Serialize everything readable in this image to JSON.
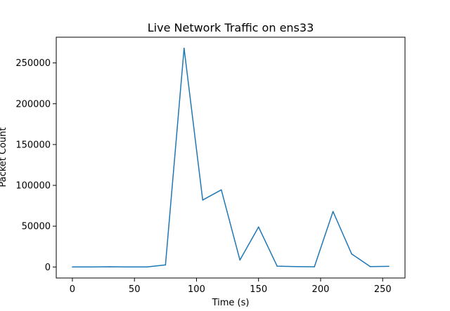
{
  "chart_data": {
    "type": "line",
    "title": "Live Network Traffic on ens33",
    "xlabel": "Time (s)",
    "ylabel": "Packet Count",
    "xlim": [
      -13,
      268
    ],
    "ylim": [
      -13500,
      281500
    ],
    "x_ticks": [
      0,
      50,
      100,
      150,
      200,
      250
    ],
    "y_ticks": [
      0,
      50000,
      100000,
      150000,
      200000,
      250000
    ],
    "grid": false,
    "series": [
      {
        "color": "#1f77b4",
        "x": [
          0,
          15,
          30,
          45,
          60,
          75,
          90,
          105,
          120,
          135,
          150,
          165,
          180,
          195,
          210,
          225,
          240,
          255
        ],
        "y": [
          0,
          0,
          300,
          0,
          0,
          2500,
          268000,
          82000,
          94500,
          8500,
          49000,
          1000,
          500,
          300,
          68000,
          16000,
          500,
          800
        ]
      }
    ]
  }
}
